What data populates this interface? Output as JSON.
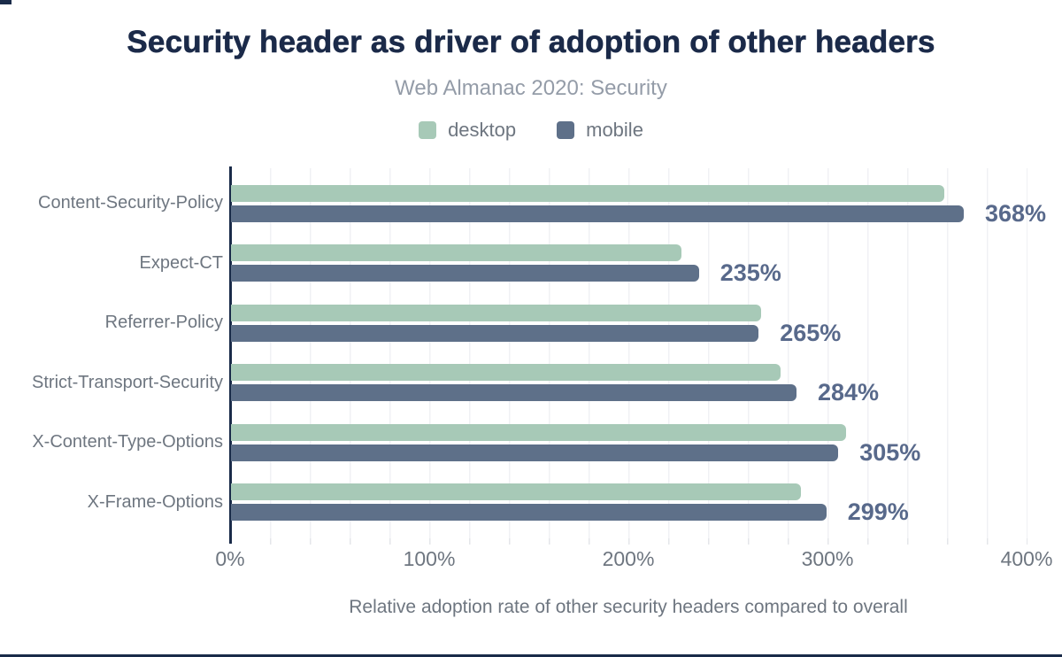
{
  "title": "Security header as driver of adoption of other headers",
  "subtitle": "Web Almanac 2020: Security",
  "colors": {
    "accent_dark": "#1a2b49",
    "desktop_bar": "#a7c9b7",
    "mobile_bar": "#5e7089",
    "value_label": "#58698b",
    "muted_text": "#6e7680",
    "subtitle_text": "#949ca8",
    "gridline": "#f0f1f4"
  },
  "chart_data": {
    "type": "bar",
    "orientation": "horizontal",
    "title": "Security header as driver of adoption of other headers",
    "subtitle": "Web Almanac 2020: Security",
    "categories": [
      "Content-Security-Policy",
      "Expect-CT",
      "Referrer-Policy",
      "Strict-Transport-Security",
      "X-Content-Type-Options",
      "X-Frame-Options"
    ],
    "series": [
      {
        "name": "desktop",
        "color": "#a7c9b7",
        "values": [
          358,
          226,
          266,
          276,
          309,
          286
        ]
      },
      {
        "name": "mobile",
        "color": "#5e7089",
        "values": [
          368,
          235,
          265,
          284,
          305,
          299
        ]
      }
    ],
    "value_labels": [
      "368%",
      "235%",
      "265%",
      "284%",
      "305%",
      "299%"
    ],
    "xlabel": "Relative adoption rate of other security headers compared to overall",
    "ylabel": "",
    "x_ticks": [
      "0%",
      "100%",
      "200%",
      "300%",
      "400%"
    ],
    "xlim": [
      0,
      400
    ],
    "grid": "vertical minor gridlines every 20%",
    "legend_position": "top-center"
  }
}
